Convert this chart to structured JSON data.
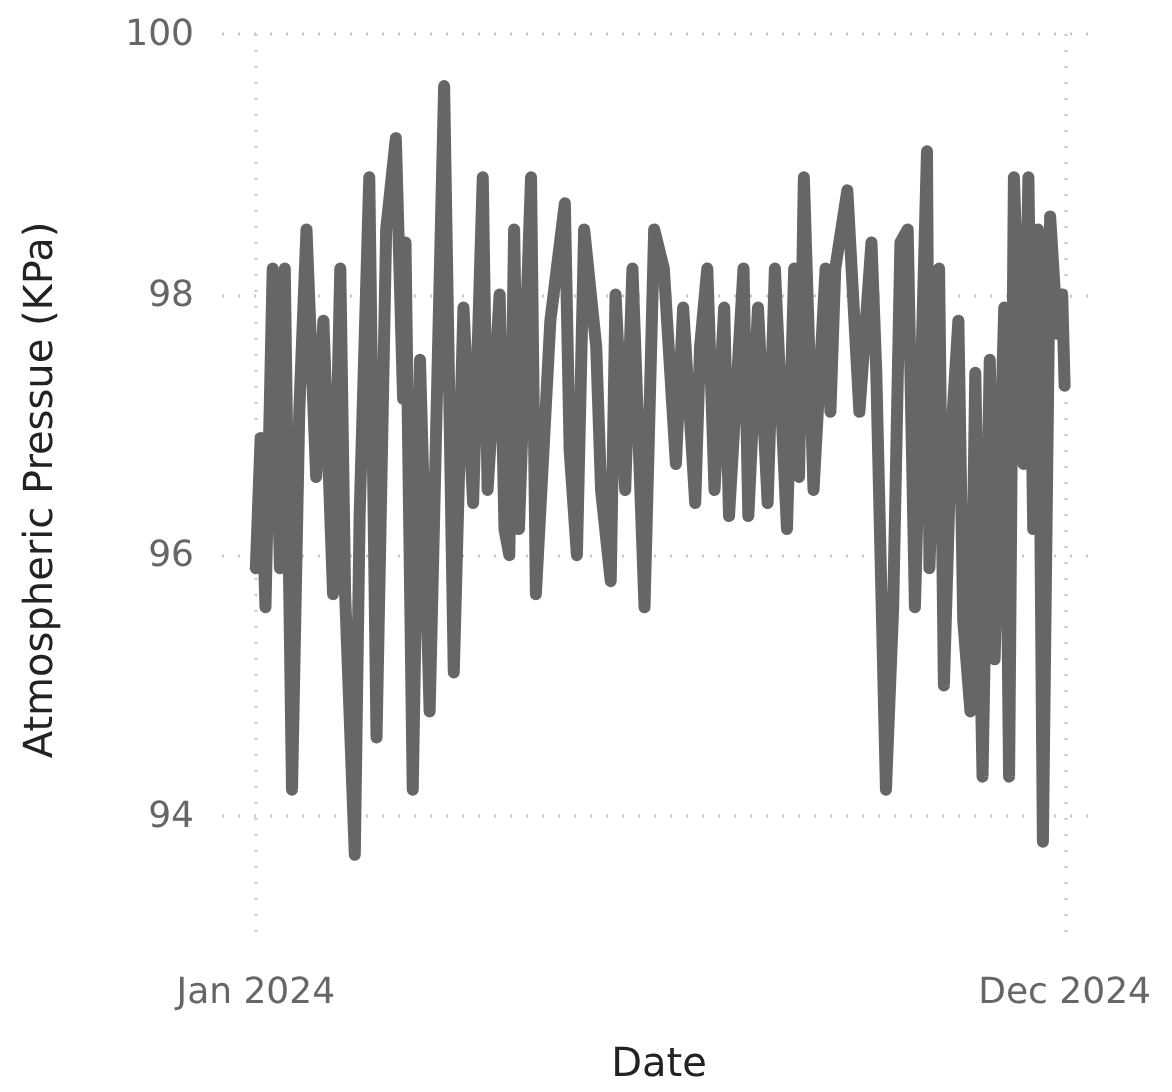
{
  "chart_data": {
    "type": "line",
    "xlabel": "Date",
    "ylabel": "Atmospheric Pressue (KPa)",
    "x": [
      "2024-01-01",
      "2024-01-03",
      "2024-01-05",
      "2024-01-08",
      "2024-01-11",
      "2024-01-13",
      "2024-01-16",
      "2024-01-19",
      "2024-01-22",
      "2024-01-26",
      "2024-01-29",
      "2024-02-02",
      "2024-02-05",
      "2024-02-07",
      "2024-02-11",
      "2024-02-13",
      "2024-02-17",
      "2024-02-20",
      "2024-02-24",
      "2024-02-28",
      "2024-03-02",
      "2024-03-03",
      "2024-03-06",
      "2024-03-09",
      "2024-03-13",
      "2024-03-19",
      "2024-03-23",
      "2024-03-27",
      "2024-03-31",
      "2024-04-04",
      "2024-04-06",
      "2024-04-11",
      "2024-04-13",
      "2024-04-15",
      "2024-04-17",
      "2024-04-19",
      "2024-04-24",
      "2024-04-26",
      "2024-05-02",
      "2024-05-08",
      "2024-05-10",
      "2024-05-13",
      "2024-05-16",
      "2024-05-21",
      "2024-05-23",
      "2024-05-27",
      "2024-05-29",
      "2024-06-02",
      "2024-06-05",
      "2024-06-10",
      "2024-06-14",
      "2024-06-18",
      "2024-06-23",
      "2024-06-26",
      "2024-07-01",
      "2024-07-03",
      "2024-07-06",
      "2024-07-09",
      "2024-07-13",
      "2024-07-15",
      "2024-07-21",
      "2024-07-23",
      "2024-07-27",
      "2024-07-31",
      "2024-08-03",
      "2024-08-08",
      "2024-08-11",
      "2024-08-13",
      "2024-08-15",
      "2024-08-19",
      "2024-08-24",
      "2024-08-26",
      "2024-08-28",
      "2024-09-02",
      "2024-09-07",
      "2024-09-12",
      "2024-09-14",
      "2024-09-18",
      "2024-09-21",
      "2024-09-24",
      "2024-09-27",
      "2024-09-30",
      "2024-10-05",
      "2024-10-06",
      "2024-10-10",
      "2024-10-12",
      "2024-10-15",
      "2024-10-18",
      "2024-10-20",
      "2024-10-23",
      "2024-10-25",
      "2024-10-28",
      "2024-10-31",
      "2024-11-02",
      "2024-11-06",
      "2024-11-08",
      "2024-11-10",
      "2024-11-14",
      "2024-11-16",
      "2024-11-18",
      "2024-11-20",
      "2024-11-22",
      "2024-11-25",
      "2024-11-28",
      "2024-11-30",
      "2024-12-01"
    ],
    "series": [
      {
        "color": "#666666",
        "values": [
          95.9,
          96.9,
          95.6,
          98.2,
          95.9,
          98.2,
          94.2,
          97.1,
          98.5,
          96.6,
          97.8,
          95.7,
          98.2,
          95.7,
          93.7,
          96.3,
          98.9,
          94.6,
          98.5,
          99.2,
          97.2,
          98.4,
          94.2,
          97.5,
          94.8,
          99.6,
          95.1,
          97.9,
          96.4,
          98.9,
          96.5,
          98.0,
          96.2,
          96.0,
          98.5,
          96.2,
          98.9,
          95.7,
          97.8,
          98.7,
          96.8,
          96.0,
          98.5,
          97.6,
          96.5,
          95.8,
          98.0,
          96.5,
          98.2,
          95.6,
          98.5,
          98.2,
          96.7,
          97.9,
          96.4,
          97.6,
          98.2,
          96.5,
          97.9,
          96.3,
          98.2,
          96.3,
          97.9,
          96.4,
          98.2,
          96.2,
          98.2,
          96.6,
          98.9,
          96.5,
          98.2,
          97.1,
          98.2,
          98.8,
          97.1,
          98.4,
          97.4,
          94.2,
          95.6,
          98.4,
          98.5,
          95.6,
          99.1,
          95.9,
          98.2,
          95.0,
          96.9,
          97.8,
          95.5,
          94.8,
          97.4,
          94.3,
          97.5,
          95.2,
          97.9,
          94.3,
          98.9,
          96.7,
          98.9,
          96.2,
          98.5,
          93.8,
          98.6,
          97.7,
          98.0,
          97.3
        ]
      }
    ],
    "xlim": [
      "2023-12-18",
      "2024-12-14"
    ],
    "ylim": [
      93,
      100
    ],
    "xticks": [
      {
        "value": "2024-01-01",
        "label": "Jan 2024"
      },
      {
        "value": "2024-12-01",
        "label": "Dec 2024"
      }
    ],
    "yticks": [
      94,
      96,
      98,
      100
    ],
    "grid": true,
    "marker": "none",
    "line_style": "solid"
  }
}
